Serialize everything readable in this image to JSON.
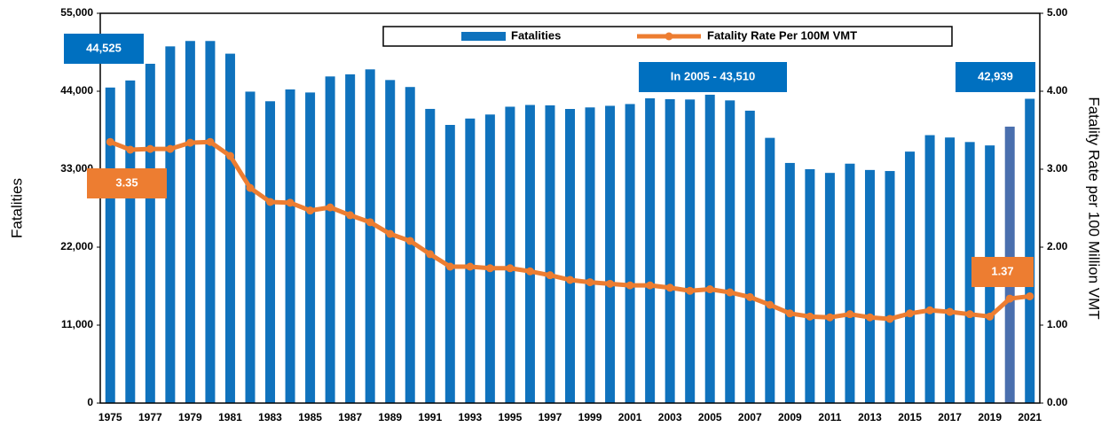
{
  "chart_data": {
    "type": "bar",
    "categories": [
      "1975",
      null,
      "1977",
      null,
      "1979",
      null,
      "1981",
      null,
      "1983",
      null,
      "1985",
      null,
      "1987",
      null,
      "1989",
      null,
      "1991",
      null,
      "1993",
      null,
      "1995",
      null,
      "1997",
      null,
      "1999",
      null,
      "2001",
      null,
      "2003",
      null,
      "2005",
      null,
      "2007",
      null,
      "2009",
      null,
      "2011",
      null,
      "2013",
      null,
      "2015",
      null,
      "2017",
      null,
      "2019",
      null,
      "2021"
    ],
    "series": [
      {
        "name": "Fatalities",
        "type": "bar",
        "color": "#0f72bd",
        "colors": [
          "#0f72bd",
          "#0f72bd",
          "#0f72bd",
          "#0f72bd",
          "#0f72bd",
          "#0f72bd",
          "#0f72bd",
          "#0f72bd",
          "#0f72bd",
          "#0f72bd",
          "#0f72bd",
          "#0f72bd",
          "#0f72bd",
          "#0f72bd",
          "#0f72bd",
          "#0f72bd",
          "#0f72bd",
          "#0f72bd",
          "#0f72bd",
          "#0f72bd",
          "#0f72bd",
          "#0f72bd",
          "#0f72bd",
          "#0f72bd",
          "#0f72bd",
          "#0f72bd",
          "#0f72bd",
          "#0f72bd",
          "#0f72bd",
          "#0f72bd",
          "#0f72bd",
          "#0f72bd",
          "#0f72bd",
          "#0f72bd",
          "#0f72bd",
          "#0f72bd",
          "#0f72bd",
          "#0f72bd",
          "#0f72bd",
          "#0f72bd",
          "#0f72bd",
          "#0f72bd",
          "#0f72bd",
          "#0f72bd",
          "#0f72bd",
          "#4a6fae",
          "#0f72bd"
        ],
        "values": [
          44525,
          45523,
          47878,
          50331,
          51093,
          51091,
          49301,
          43945,
          42589,
          44257,
          43825,
          46087,
          46390,
          47087,
          45582,
          44599,
          41508,
          39250,
          40150,
          40716,
          41817,
          42065,
          42013,
          41501,
          41717,
          41945,
          42196,
          43005,
          42884,
          42836,
          43510,
          42708,
          41259,
          37423,
          33883,
          32999,
          32479,
          33782,
          32893,
          32744,
          35484,
          37806,
          37473,
          36835,
          36355,
          39007,
          42939
        ]
      },
      {
        "name": "Fatality Rate Per 100M VMT",
        "type": "line",
        "axis": "y2",
        "color": "#ed7d31",
        "values": [
          3.35,
          3.25,
          3.26,
          3.26,
          3.34,
          3.35,
          3.17,
          2.76,
          2.58,
          2.57,
          2.47,
          2.51,
          2.41,
          2.32,
          2.17,
          2.08,
          1.91,
          1.75,
          1.75,
          1.73,
          1.73,
          1.69,
          1.64,
          1.58,
          1.55,
          1.53,
          1.51,
          1.51,
          1.48,
          1.44,
          1.46,
          1.42,
          1.36,
          1.26,
          1.15,
          1.11,
          1.1,
          1.14,
          1.1,
          1.08,
          1.15,
          1.19,
          1.17,
          1.14,
          1.11,
          1.34,
          1.37
        ]
      }
    ],
    "y_label": "Fatalities",
    "y2_label": "Fatality Rate per 100 Million VMT",
    "ylim": [
      0,
      55000
    ],
    "yticks": [
      0,
      {
        "value": 11000,
        "label": "11,000"
      },
      {
        "value": 22000,
        "label": "22,000"
      },
      {
        "value": 33000,
        "label": "33,000"
      },
      {
        "value": 44000,
        "label": "44,000"
      },
      {
        "value": 55000,
        "label": "55,000"
      }
    ],
    "y2lim": [
      0,
      5
    ],
    "y2ticks": [
      {
        "value": 0,
        "label": "0.00"
      },
      {
        "value": 1,
        "label": "1.00"
      },
      {
        "value": 2,
        "label": "2.00"
      },
      {
        "value": 3,
        "label": "3.00"
      },
      {
        "value": 4,
        "label": "4.00"
      },
      {
        "value": 5,
        "label": "5.00"
      }
    ],
    "legend": "top",
    "annotations": [
      "44,525",
      "In 2005 - 43,510",
      "42,939",
      "3.35",
      "1.37"
    ]
  }
}
